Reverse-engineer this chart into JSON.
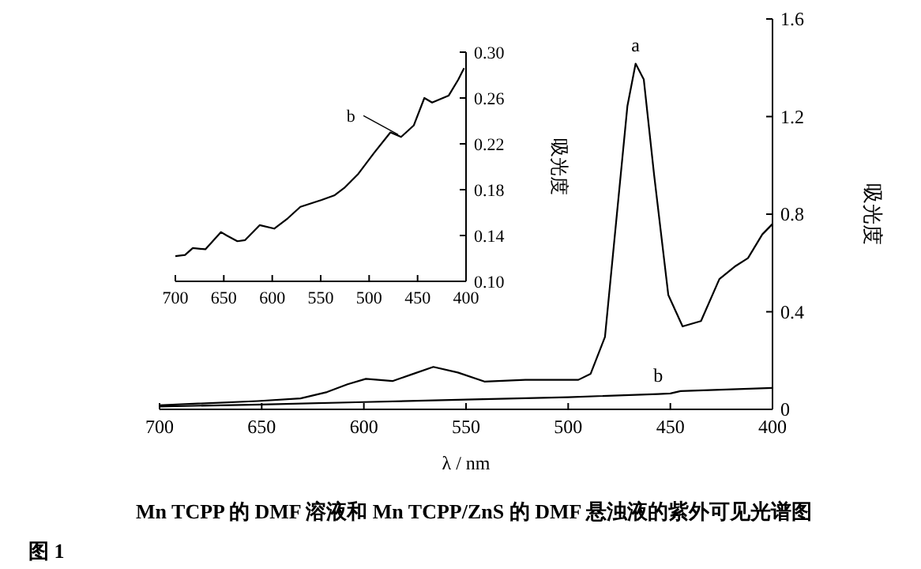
{
  "chart_data": [
    {
      "type": "line",
      "xlabel": "λ / nm",
      "ylabel": "吸光度",
      "xlim": [
        700,
        400
      ],
      "xticks": [
        700,
        650,
        600,
        550,
        500,
        450,
        400
      ],
      "ylim": [
        0,
        1.6
      ],
      "yticks": [
        0,
        0.4,
        0.8,
        1.2,
        1.6
      ],
      "series": [
        {
          "color": "#000000",
          "x": [
            700,
            652,
            631,
            618,
            608,
            599,
            586,
            577,
            566,
            554,
            541,
            521,
            495,
            489,
            482,
            476,
            471,
            467,
            463,
            458,
            451,
            444,
            435,
            426,
            418,
            412,
            405,
            400
          ],
          "values": [
            0.017,
            0.034,
            0.045,
            0.071,
            0.103,
            0.125,
            0.116,
            0.142,
            0.174,
            0.151,
            0.114,
            0.121,
            0.121,
            0.146,
            0.297,
            0.814,
            1.244,
            1.417,
            1.352,
            0.965,
            0.469,
            0.34,
            0.362,
            0.534,
            0.588,
            0.62,
            0.717,
            0.76
          ]
        },
        {
          "color": "#000000",
          "x": [
            700,
            650,
            600,
            550,
            500,
            456,
            450,
            445,
            400
          ],
          "values": [
            0.012,
            0.02,
            0.03,
            0.04,
            0.05,
            0.063,
            0.065,
            0.075,
            0.088
          ]
        }
      ],
      "annotations": [
        {
          "text": "a",
          "x": 467,
          "y": 1.417
        },
        {
          "text": "b",
          "x": 456,
          "y": 0.063
        },
        "Mn TCPP 的 DMF 溶液和 Mn TCPP/ZnS 的 DMF 悬浊液的紫外可见光谱图",
        "图 1"
      ]
    },
    {
      "type": "line",
      "ylabel": "吸光度",
      "xlim": [
        700,
        400
      ],
      "xticks": [
        700,
        650,
        600,
        550,
        500,
        450,
        400
      ],
      "ylim": [
        0.1,
        0.3
      ],
      "yticks": [
        {
          "value": 0.1,
          "label": "0.10"
        },
        0.14,
        0.18,
        0.22,
        0.26,
        {
          "value": 0.3,
          "label": "0.30"
        }
      ],
      "series": [
        {
          "color": "#000000",
          "x": [
            700,
            690,
            682,
            669,
            653,
            647,
            636,
            628,
            613,
            598,
            584,
            571,
            549,
            536,
            525,
            511,
            495,
            478,
            467,
            454,
            443,
            435,
            418,
            408,
            402
          ],
          "values": [
            0.122,
            0.123,
            0.129,
            0.128,
            0.143,
            0.14,
            0.135,
            0.136,
            0.149,
            0.146,
            0.155,
            0.165,
            0.171,
            0.175,
            0.182,
            0.194,
            0.212,
            0.23,
            0.226,
            0.236,
            0.26,
            0.256,
            0.262,
            0.276,
            0.286
          ]
        }
      ],
      "annotations": [
        {
          "text": "b",
          "x": 470,
          "y": 0.228
        }
      ]
    }
  ]
}
